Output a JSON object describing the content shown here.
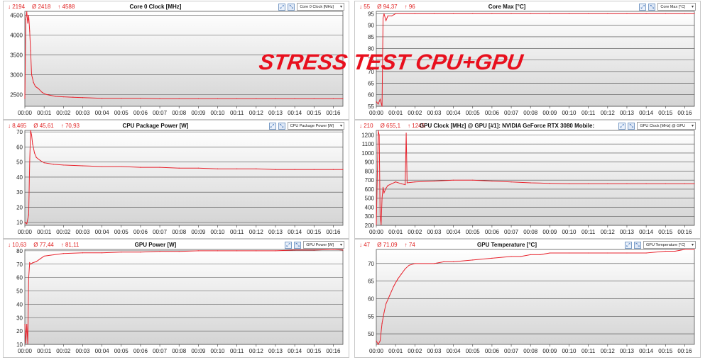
{
  "overlay_text": "STRESS TEST CPU+GPU",
  "colors": {
    "series": "#e8232d",
    "plot_bg_top": "#ffffff",
    "plot_bg_bottom": "#d4d4d4",
    "grid": "#4a4a4a"
  },
  "charts": [
    {
      "title": "Core 0 Clock [MHz]",
      "stats": {
        "min": "↓ 2194",
        "avg": "Ø 2418",
        "max": "↑ 4588"
      },
      "dropdown": "Core 0 Clock [MHz]",
      "icons": [
        "zoom-icon",
        "zoom-fit-icon"
      ]
    },
    {
      "title": "Core Max [°C]",
      "stats": {
        "min": "↓ 55",
        "avg": "Ø 94,37",
        "max": "↑ 96"
      },
      "dropdown": "Core Max [°C]",
      "icons": [
        "zoom-icon",
        "zoom-fit-icon"
      ]
    },
    {
      "title": "CPU Package Power [W]",
      "stats": {
        "min": "↓ 8,465",
        "avg": "Ø 45,61",
        "max": "↑ 70,93"
      },
      "dropdown": "CPU Package Power [W]",
      "icons": [
        "zoom-icon",
        "zoom-fit-icon"
      ]
    },
    {
      "title": "GPU Clock [MHz] @ GPU [#1]: NVIDIA GeForce RTX 3080 Mobile:",
      "stats": {
        "min": "↓ 210",
        "avg": "Ø 655,1",
        "max": "↑ 1245"
      },
      "dropdown": "GPU Clock [MHz] @ GPU",
      "icons": [
        "zoom-icon",
        "zoom-fit-icon"
      ]
    },
    {
      "title": "GPU Power [W]",
      "stats": {
        "min": "↓ 10,63",
        "avg": "Ø 77,44",
        "max": "↑ 81,11"
      },
      "dropdown": "GPU Power [W]",
      "icons": [
        "zoom-icon",
        "zoom-fit-icon"
      ]
    },
    {
      "title": "GPU Temperature [°C]",
      "stats": {
        "min": "↓ 47",
        "avg": "Ø 71,09",
        "max": "↑ 74"
      },
      "dropdown": "GPU Temperature [°C]",
      "icons": [
        "zoom-icon",
        "zoom-fit-icon"
      ]
    }
  ],
  "chart_data": [
    {
      "type": "line",
      "title": "Core 0 Clock [MHz]",
      "ylim": [
        2200,
        4600
      ],
      "yticks": [
        2500,
        3000,
        3500,
        4000,
        4500
      ],
      "xlim": [
        0,
        16.5
      ],
      "xticks": [
        "00:00",
        "00:01",
        "00:02",
        "00:03",
        "00:04",
        "00:05",
        "00:06",
        "00:07",
        "00:08",
        "00:09",
        "00:10",
        "00:11",
        "00:12",
        "00:13",
        "00:14",
        "00:15",
        "00:16"
      ],
      "grid": true,
      "x": [
        0,
        0.05,
        0.1,
        0.15,
        0.2,
        0.25,
        0.3,
        0.35,
        0.45,
        0.55,
        0.7,
        0.9,
        1.1,
        1.3,
        1.6,
        2.0,
        2.5,
        3.0,
        4.0,
        5.0,
        6.0,
        7.0,
        8.0,
        9.0,
        10.0,
        11.0,
        12.0,
        13.0,
        14.0,
        15.0,
        16.0,
        16.5
      ],
      "y": [
        2400,
        4400,
        4588,
        4300,
        4500,
        4100,
        3600,
        3000,
        2800,
        2700,
        2650,
        2550,
        2500,
        2480,
        2450,
        2440,
        2430,
        2420,
        2400,
        2400,
        2400,
        2390,
        2390,
        2390,
        2390,
        2390,
        2390,
        2390,
        2390,
        2390,
        2390,
        2390
      ]
    },
    {
      "type": "line",
      "title": "Core Max [°C]",
      "ylim": [
        55,
        96
      ],
      "yticks": [
        55,
        60,
        65,
        70,
        75,
        80,
        85,
        90,
        95
      ],
      "xlim": [
        0,
        16.5
      ],
      "xticks": [
        "00:00",
        "00:01",
        "00:02",
        "00:03",
        "00:04",
        "00:05",
        "00:06",
        "00:07",
        "00:08",
        "00:09",
        "00:10",
        "00:11",
        "00:12",
        "00:13",
        "00:14",
        "00:15",
        "00:16"
      ],
      "grid": true,
      "x": [
        0,
        0.1,
        0.2,
        0.3,
        0.35,
        0.4,
        0.5,
        0.6,
        0.8,
        1.0,
        2.0,
        3.0,
        4.0,
        5.0,
        6.0,
        7.0,
        8.0,
        9.0,
        10.0,
        11.0,
        12.0,
        13.0,
        14.0,
        15.0,
        16.0,
        16.5
      ],
      "y": [
        57,
        56,
        58,
        55,
        93,
        95,
        92,
        94,
        94,
        95,
        95,
        95,
        95,
        95,
        95,
        95,
        95,
        95,
        95,
        95,
        95,
        95,
        95,
        95,
        95,
        95
      ]
    },
    {
      "type": "line",
      "title": "CPU Package Power [W]",
      "ylim": [
        8,
        71
      ],
      "yticks": [
        10,
        20,
        30,
        40,
        50,
        60,
        70
      ],
      "xlim": [
        0,
        16.5
      ],
      "xticks": [
        "00:00",
        "00:01",
        "00:02",
        "00:03",
        "00:04",
        "00:05",
        "00:06",
        "00:07",
        "00:08",
        "00:09",
        "00:10",
        "00:11",
        "00:12",
        "00:13",
        "00:14",
        "00:15",
        "00:16"
      ],
      "grid": true,
      "x": [
        0,
        0.1,
        0.2,
        0.25,
        0.3,
        0.35,
        0.4,
        0.5,
        0.6,
        0.8,
        1.0,
        1.5,
        2.0,
        3.0,
        4.0,
        5.0,
        6.0,
        7.0,
        8.0,
        9.0,
        10.0,
        11.0,
        12.0,
        13.0,
        14.0,
        15.0,
        16.0,
        16.5
      ],
      "y": [
        10,
        9,
        15,
        50,
        70.9,
        68,
        62,
        56,
        53,
        51,
        49.5,
        48.5,
        48,
        47.5,
        47,
        47,
        46.5,
        46.5,
        46,
        46,
        45.5,
        45.5,
        45.5,
        45,
        45,
        45,
        45,
        45
      ]
    },
    {
      "type": "line",
      "title": "GPU Clock [MHz] @ GPU [#1]: NVIDIA GeForce RTX 3080 Mobile:",
      "ylim": [
        200,
        1250
      ],
      "yticks": [
        200,
        300,
        400,
        500,
        600,
        700,
        800,
        900,
        1000,
        1100,
        1200
      ],
      "xlim": [
        0,
        16.5
      ],
      "xticks": [
        "00:00",
        "00:01",
        "00:02",
        "00:03",
        "00:04",
        "00:05",
        "00:06",
        "00:07",
        "00:08",
        "00:09",
        "00:10",
        "00:11",
        "00:12",
        "00:13",
        "00:14",
        "00:15",
        "00:16"
      ],
      "grid": true,
      "x": [
        0,
        0.1,
        0.15,
        0.2,
        0.25,
        0.3,
        0.35,
        0.4,
        0.5,
        0.6,
        0.8,
        1.0,
        1.3,
        1.5,
        1.55,
        1.6,
        2.0,
        3.0,
        4.0,
        5.0,
        6.0,
        7.0,
        8.0,
        9.0,
        10.0,
        11.0,
        12.0,
        13.0,
        14.0,
        15.0,
        16.0,
        16.5
      ],
      "y": [
        210,
        1245,
        1200,
        300,
        210,
        500,
        620,
        560,
        610,
        640,
        660,
        680,
        660,
        650,
        1220,
        670,
        680,
        690,
        700,
        700,
        690,
        680,
        670,
        665,
        660,
        660,
        660,
        660,
        660,
        660,
        660,
        660
      ]
    },
    {
      "type": "line",
      "title": "GPU Power [W]",
      "ylim": [
        10,
        81
      ],
      "yticks": [
        10,
        20,
        30,
        40,
        50,
        60,
        70,
        80
      ],
      "xlim": [
        0,
        16.5
      ],
      "xticks": [
        "00:00",
        "00:01",
        "00:02",
        "00:03",
        "00:04",
        "00:05",
        "00:06",
        "00:07",
        "00:08",
        "00:09",
        "00:10",
        "00:11",
        "00:12",
        "00:13",
        "00:14",
        "00:15",
        "00:16"
      ],
      "grid": true,
      "x": [
        0,
        0.05,
        0.1,
        0.15,
        0.2,
        0.25,
        0.3,
        0.4,
        0.6,
        0.8,
        1.0,
        1.5,
        2.0,
        3.0,
        4.0,
        5.0,
        6.0,
        7.0,
        8.0,
        9.0,
        10.0,
        11.0,
        12.0,
        13.0,
        14.0,
        15.0,
        16.0,
        16.5
      ],
      "y": [
        25,
        11,
        25,
        10.6,
        60,
        71,
        70,
        71,
        72,
        74,
        76,
        77,
        78,
        78.5,
        78.5,
        79,
        79,
        79.5,
        79.5,
        80,
        80,
        80,
        80,
        80,
        80.5,
        80.5,
        81,
        80.5
      ]
    },
    {
      "type": "line",
      "title": "GPU Temperature [°C]",
      "ylim": [
        47,
        74
      ],
      "yticks": [
        50,
        55,
        60,
        65,
        70
      ],
      "xlim": [
        0,
        16.5
      ],
      "xticks": [
        "00:00",
        "00:01",
        "00:02",
        "00:03",
        "00:04",
        "00:05",
        "00:06",
        "00:07",
        "00:08",
        "00:09",
        "00:10",
        "00:11",
        "00:12",
        "00:13",
        "00:14",
        "00:15",
        "00:16"
      ],
      "grid": true,
      "x": [
        0,
        0.1,
        0.2,
        0.3,
        0.4,
        0.5,
        0.7,
        0.9,
        1.1,
        1.3,
        1.5,
        1.7,
        2.0,
        3.0,
        3.5,
        4.0,
        5.0,
        6.0,
        7.0,
        7.5,
        8.0,
        8.5,
        9.0,
        10.0,
        11.0,
        12.0,
        13.0,
        14.0,
        15.0,
        15.5,
        16.0,
        16.5
      ],
      "y": [
        48,
        47,
        48,
        53,
        56,
        58.5,
        61,
        63.5,
        65.5,
        67,
        68.5,
        69.5,
        70,
        70,
        70.5,
        70.5,
        71,
        71.5,
        72,
        72,
        72.5,
        72.5,
        73,
        73,
        73,
        73,
        73,
        73,
        73.5,
        73.5,
        74,
        74
      ]
    }
  ]
}
